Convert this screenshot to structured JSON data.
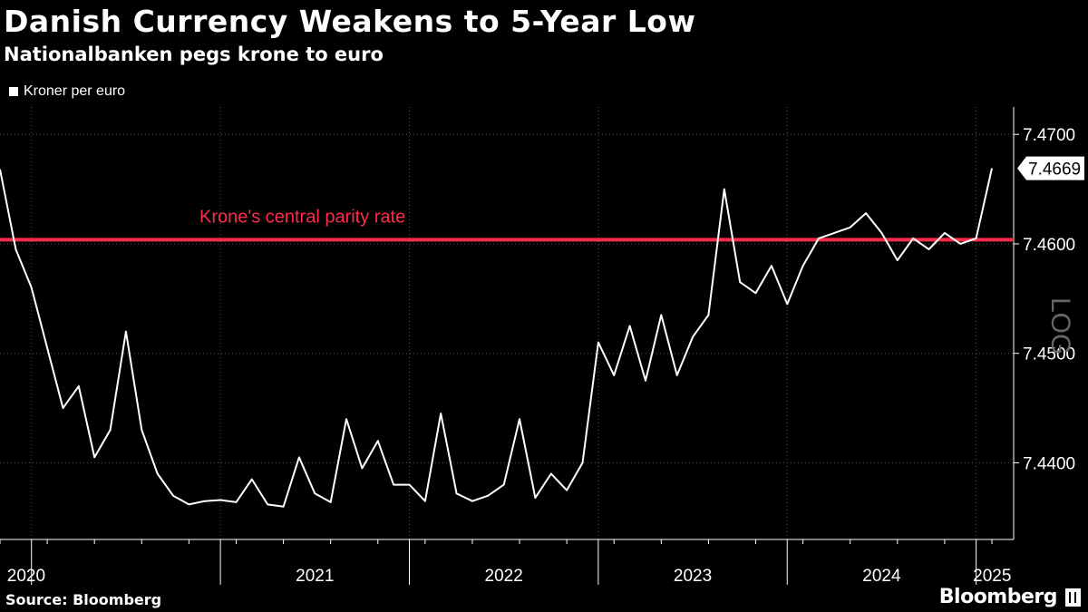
{
  "chart_data": {
    "type": "line",
    "title": "Danish Currency Weakens to 5-Year Low",
    "subtitle": "Nationalbanken pegs krone to euro",
    "series": [
      {
        "name": "Kroner per euro",
        "color": "#ffffff",
        "x": [
          "2019-11",
          "2019-12",
          "2020-01",
          "2020-02",
          "2020-03",
          "2020-04",
          "2020-05",
          "2020-06",
          "2020-07",
          "2020-08",
          "2020-09",
          "2020-10",
          "2020-11",
          "2020-12",
          "2021-01",
          "2021-02",
          "2021-03",
          "2021-04",
          "2021-05",
          "2021-06",
          "2021-07",
          "2021-08",
          "2021-09",
          "2021-10",
          "2021-11",
          "2021-12",
          "2022-01",
          "2022-02",
          "2022-03",
          "2022-04",
          "2022-05",
          "2022-06",
          "2022-07",
          "2022-08",
          "2022-09",
          "2022-10",
          "2022-11",
          "2022-12",
          "2023-01",
          "2023-02",
          "2023-03",
          "2023-04",
          "2023-05",
          "2023-06",
          "2023-07",
          "2023-08",
          "2023-09",
          "2023-10",
          "2023-11",
          "2023-12",
          "2024-01",
          "2024-02",
          "2024-03",
          "2024-04",
          "2024-05",
          "2024-06",
          "2024-07",
          "2024-08",
          "2024-09",
          "2024-10",
          "2024-11",
          "2024-12",
          "2025-01",
          "2025-02"
        ],
        "values": [
          7.4668,
          7.4595,
          7.456,
          7.4505,
          7.445,
          7.447,
          7.4405,
          7.443,
          7.452,
          7.443,
          7.439,
          7.437,
          7.4362,
          7.4365,
          7.4366,
          7.4364,
          7.4385,
          7.4362,
          7.436,
          7.4405,
          7.4372,
          7.4364,
          7.444,
          7.4395,
          7.442,
          7.438,
          7.438,
          7.4365,
          7.4445,
          7.4372,
          7.4365,
          7.437,
          7.438,
          7.444,
          7.4368,
          7.439,
          7.4375,
          7.44,
          7.451,
          7.448,
          7.4525,
          7.4475,
          7.4535,
          7.448,
          7.4515,
          7.4535,
          7.465,
          7.4565,
          7.4555,
          7.458,
          7.4545,
          7.458,
          7.4605,
          7.461,
          7.4615,
          7.4628,
          7.461,
          7.4585,
          7.4605,
          7.4595,
          7.461,
          7.46,
          7.4605,
          7.4669
        ]
      }
    ],
    "xlabel": "",
    "ylabel": "",
    "x_ticks": [
      "2020",
      "2021",
      "2022",
      "2023",
      "2024",
      "2025"
    ],
    "y_ticks": [
      "7.4700",
      "7.4600",
      "7.4500",
      "7.4400"
    ],
    "ylim": [
      7.433,
      7.4725
    ],
    "xlim": [
      "2019-11",
      "2025-02"
    ],
    "reference_line": {
      "label": "Krone's central parity rate",
      "value": 7.46038,
      "color": "#ff2b4a"
    },
    "last_value_label": "7.4669",
    "scale_label": "LOG",
    "grid": true,
    "legend_position": "top-left"
  },
  "footer": {
    "source": "Source: Bloomberg",
    "brand": "Bloomberg"
  }
}
